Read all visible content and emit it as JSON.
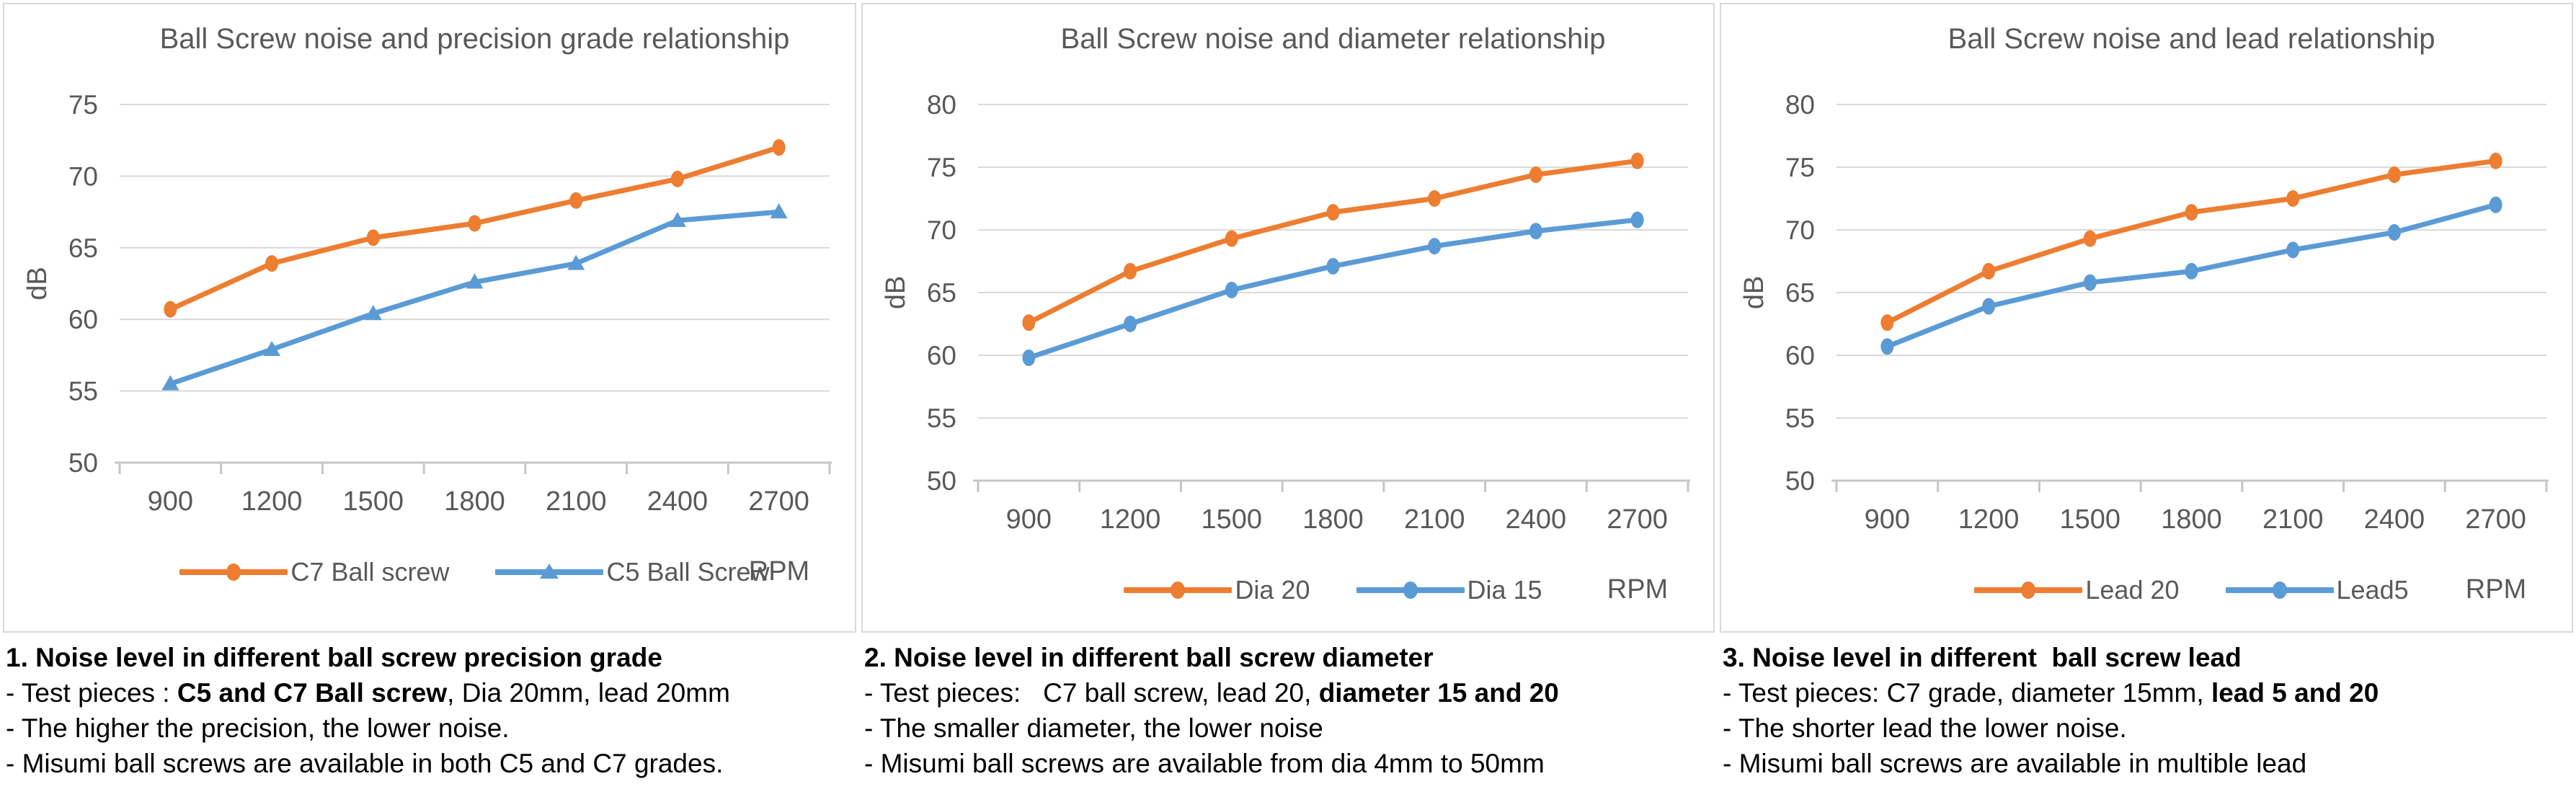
{
  "colors": {
    "orange_series": "#ED7D31",
    "blue_series": "#5B9BD5",
    "axis_text": "#595959",
    "gridline": "#D9D9D9",
    "axis_line": "#C6C6C6",
    "panel_border": "#D9D9D9",
    "note_text": "#000000"
  },
  "chart_data": [
    {
      "type": "line",
      "title": "Ball Screw noise and precision grade relationship",
      "xlabel": "RPM",
      "ylabel": "dB",
      "ylim": [
        50,
        75
      ],
      "ytick_step": 5,
      "grid": true,
      "legend_position": "bottom",
      "categories": [
        "900",
        "1200",
        "1500",
        "1800",
        "2100",
        "2400",
        "2700"
      ],
      "series": [
        {
          "name": "C7 Ball screw",
          "color": "#ED7D31",
          "marker": "circle",
          "values": [
            60.7,
            63.9,
            65.7,
            66.7,
            68.3,
            69.8,
            72.0
          ]
        },
        {
          "name": "C5 Ball Screw",
          "color": "#5B9BD5",
          "marker": "triangle",
          "values": [
            55.5,
            57.9,
            60.4,
            62.6,
            63.9,
            66.9,
            67.5
          ]
        }
      ]
    },
    {
      "type": "line",
      "title": "Ball Screw noise and diameter relationship",
      "xlabel": "RPM",
      "ylabel": "dB",
      "ylim": [
        50,
        80
      ],
      "ytick_step": 5,
      "grid": true,
      "legend_position": "bottom",
      "categories": [
        "900",
        "1200",
        "1500",
        "1800",
        "2100",
        "2400",
        "2700"
      ],
      "series": [
        {
          "name": "Dia 20",
          "color": "#ED7D31",
          "marker": "circle",
          "values": [
            62.6,
            66.7,
            69.3,
            71.4,
            72.5,
            74.4,
            75.5
          ]
        },
        {
          "name": "Dia 15",
          "color": "#5B9BD5",
          "marker": "circle",
          "values": [
            59.8,
            62.5,
            65.2,
            67.1,
            68.7,
            69.9,
            70.8
          ]
        }
      ]
    },
    {
      "type": "line",
      "title": "Ball Screw noise and lead relationship",
      "xlabel": "RPM",
      "ylabel": "dB",
      "ylim": [
        50,
        80
      ],
      "ytick_step": 5,
      "grid": true,
      "legend_position": "bottom",
      "categories": [
        "900",
        "1200",
        "1500",
        "1800",
        "2100",
        "2400",
        "2700"
      ],
      "series": [
        {
          "name": "Lead 20",
          "color": "#ED7D31",
          "marker": "circle",
          "values": [
            62.6,
            66.7,
            69.3,
            71.4,
            72.5,
            74.4,
            75.5
          ]
        },
        {
          "name": "Lead5",
          "color": "#5B9BD5",
          "marker": "circle",
          "values": [
            60.7,
            63.9,
            65.8,
            66.7,
            68.4,
            69.8,
            72.0
          ]
        }
      ]
    }
  ],
  "notes": [
    {
      "lines": [
        [
          {
            "t": "1. Noise level in different ball screw precision grade",
            "b": true
          }
        ],
        [
          {
            "t": "- Test pieces : ",
            "b": false
          },
          {
            "t": "C5 and C7 Ball screw",
            "b": true
          },
          {
            "t": ", Dia 20mm, lead 20mm",
            "b": false
          }
        ],
        [
          {
            "t": "- The higher the precision, the lower noise.",
            "b": false
          }
        ],
        [
          {
            "t": "- Misumi ball screws are available in both C5 and C7 grades.",
            "b": false
          }
        ]
      ]
    },
    {
      "lines": [
        [
          {
            "t": "2. Noise level in different ball screw diameter",
            "b": true
          }
        ],
        [
          {
            "t": "- Test pieces:   C7 ball screw, lead 20, ",
            "b": false
          },
          {
            "t": "diameter 15 and 20",
            "b": true
          }
        ],
        [
          {
            "t": "- The smaller diameter, the lower noise",
            "b": false
          }
        ],
        [
          {
            "t": "- Misumi ball screws are available from dia 4mm to 50mm",
            "b": false
          }
        ]
      ]
    },
    {
      "lines": [
        [
          {
            "t": "3. Noise level in different  ball screw lead",
            "b": true
          }
        ],
        [
          {
            "t": "- Test pieces: C7 grade, diameter 15mm, ",
            "b": false
          },
          {
            "t": "lead 5 and 20",
            "b": true
          }
        ],
        [
          {
            "t": "- The shorter lead the lower noise.",
            "b": false
          }
        ],
        [
          {
            "t": "- Misumi ball screws are available in multible lead",
            "b": false
          }
        ]
      ]
    }
  ]
}
